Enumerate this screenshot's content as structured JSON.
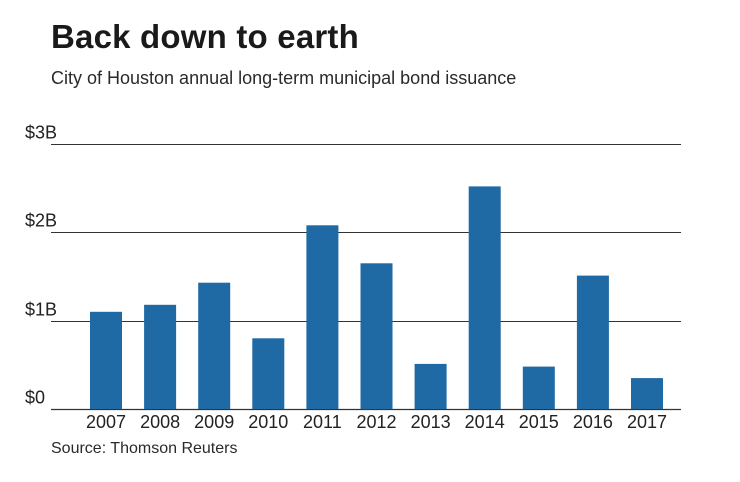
{
  "header": {
    "title": "Back down to earth",
    "subtitle": "City of Houston annual long-term municipal bond issuance"
  },
  "footer": {
    "source": "Source: Thomson Reuters"
  },
  "colors": {
    "bar": "#1f6aa5",
    "grid": "#333333"
  },
  "chart_data": {
    "type": "bar",
    "categories": [
      "2007",
      "2008",
      "2009",
      "2010",
      "2011",
      "2012",
      "2013",
      "2014",
      "2015",
      "2016",
      "2017"
    ],
    "values": [
      1.1,
      1.18,
      1.43,
      0.8,
      2.08,
      1.65,
      0.51,
      2.52,
      0.48,
      1.51,
      0.35
    ],
    "yticks": [
      0,
      1,
      2,
      3
    ],
    "ytick_labels": [
      "$0",
      "$1B",
      "$2B",
      "$3B"
    ],
    "ylim": [
      0,
      3
    ],
    "grid": true,
    "legend": "none"
  }
}
